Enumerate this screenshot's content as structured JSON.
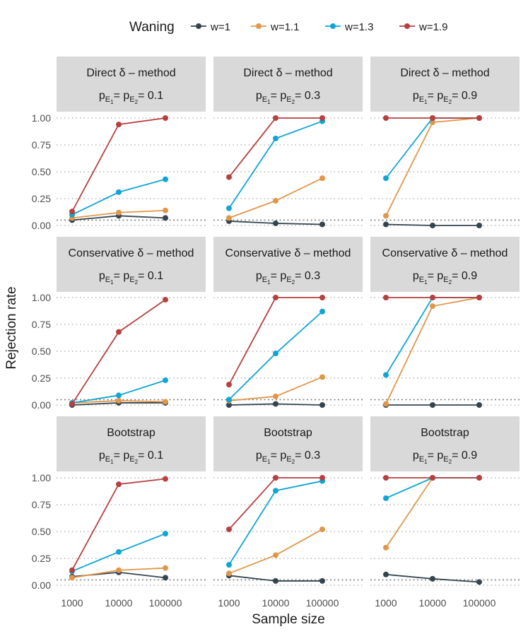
{
  "legend": {
    "title": "Waning",
    "items": [
      "w=1",
      "w=1.1",
      "w=1.3",
      "w=1.9"
    ]
  },
  "colors": {
    "w=1": "#35454f",
    "w=1.1": "#e0974a",
    "w=1.3": "#0fa5d5",
    "w=1.9": "#b6403f",
    "strip": "#d9d9d9",
    "grid": "#ebebeb",
    "reference": "#7f7f7f"
  },
  "chart_data": {
    "type": "line",
    "xlabel": "Sample size",
    "ylabel": "Rejection rate",
    "x": [
      "1000",
      "10000",
      "100000"
    ],
    "y_ticks": [
      "0.00",
      "0.25",
      "0.50",
      "0.75",
      "1.00"
    ],
    "ylim": [
      0,
      1
    ],
    "reference_line": 0.05,
    "grid": true,
    "legend_position": "top",
    "facet_rows": [
      "Direct  δ – method",
      "Conservative  δ – method",
      "Bootstrap"
    ],
    "facet_cols": [
      "0.1",
      "0.3",
      "0.9"
    ],
    "strip_prefix": "p",
    "strip_sub_e1": "E",
    "strip_sub_e1_index": "1",
    "strip_sub_e2": "E",
    "strip_sub_e2_index": "2",
    "strip_eq": "=",
    "panels": [
      {
        "method": "Direct  δ – method",
        "p": "0.1",
        "series": [
          {
            "name": "w=1",
            "values": [
              0.05,
              0.09,
              0.07
            ]
          },
          {
            "name": "w=1.1",
            "values": [
              0.07,
              0.12,
              0.14
            ]
          },
          {
            "name": "w=1.3",
            "values": [
              0.1,
              0.31,
              0.43
            ]
          },
          {
            "name": "w=1.9",
            "values": [
              0.13,
              0.94,
              1.0
            ]
          }
        ]
      },
      {
        "method": "Direct  δ – method",
        "p": "0.3",
        "series": [
          {
            "name": "w=1",
            "values": [
              0.04,
              0.02,
              0.01
            ]
          },
          {
            "name": "w=1.1",
            "values": [
              0.07,
              0.23,
              0.44
            ]
          },
          {
            "name": "w=1.3",
            "values": [
              0.16,
              0.81,
              0.97
            ]
          },
          {
            "name": "w=1.9",
            "values": [
              0.45,
              1.0,
              1.0
            ]
          }
        ]
      },
      {
        "method": "Direct  δ – method",
        "p": "0.9",
        "series": [
          {
            "name": "w=1",
            "values": [
              0.01,
              0.0,
              0.0
            ]
          },
          {
            "name": "w=1.1",
            "values": [
              0.09,
              0.96,
              1.0
            ]
          },
          {
            "name": "w=1.3",
            "values": [
              0.44,
              1.0,
              1.0
            ]
          },
          {
            "name": "w=1.9",
            "values": [
              1.0,
              1.0,
              1.0
            ]
          }
        ]
      },
      {
        "method": "Conservative  δ – method",
        "p": "0.1",
        "series": [
          {
            "name": "w=1",
            "values": [
              0.0,
              0.02,
              0.02
            ]
          },
          {
            "name": "w=1.1",
            "values": [
              0.02,
              0.04,
              0.03
            ]
          },
          {
            "name": "w=1.3",
            "values": [
              0.02,
              0.09,
              0.23
            ]
          },
          {
            "name": "w=1.9",
            "values": [
              0.01,
              0.68,
              0.98
            ]
          }
        ]
      },
      {
        "method": "Conservative  δ – method",
        "p": "0.3",
        "series": [
          {
            "name": "w=1",
            "values": [
              0.0,
              0.01,
              0.0
            ]
          },
          {
            "name": "w=1.1",
            "values": [
              0.04,
              0.08,
              0.26
            ]
          },
          {
            "name": "w=1.3",
            "values": [
              0.05,
              0.48,
              0.87
            ]
          },
          {
            "name": "w=1.9",
            "values": [
              0.19,
              1.0,
              1.0
            ]
          }
        ]
      },
      {
        "method": "Conservative  δ – method",
        "p": "0.9",
        "series": [
          {
            "name": "w=1",
            "values": [
              0.0,
              0.0,
              0.0
            ]
          },
          {
            "name": "w=1.1",
            "values": [
              0.01,
              0.92,
              1.0
            ]
          },
          {
            "name": "w=1.3",
            "values": [
              0.28,
              1.0,
              1.0
            ]
          },
          {
            "name": "w=1.9",
            "values": [
              1.0,
              1.0,
              1.0
            ]
          }
        ]
      },
      {
        "method": "Bootstrap",
        "p": "0.1",
        "series": [
          {
            "name": "w=1",
            "values": [
              0.08,
              0.12,
              0.07
            ]
          },
          {
            "name": "w=1.1",
            "values": [
              0.07,
              0.14,
              0.16
            ]
          },
          {
            "name": "w=1.3",
            "values": [
              0.13,
              0.31,
              0.48
            ]
          },
          {
            "name": "w=1.9",
            "values": [
              0.14,
              0.94,
              0.99
            ]
          }
        ]
      },
      {
        "method": "Bootstrap",
        "p": "0.3",
        "series": [
          {
            "name": "w=1",
            "values": [
              0.09,
              0.04,
              0.04
            ]
          },
          {
            "name": "w=1.1",
            "values": [
              0.11,
              0.28,
              0.52
            ]
          },
          {
            "name": "w=1.3",
            "values": [
              0.19,
              0.88,
              0.97
            ]
          },
          {
            "name": "w=1.9",
            "values": [
              0.52,
              1.0,
              1.0
            ]
          }
        ]
      },
      {
        "method": "Bootstrap",
        "p": "0.9",
        "series": [
          {
            "name": "w=1",
            "values": [
              0.1,
              0.06,
              0.03
            ]
          },
          {
            "name": "w=1.1",
            "values": [
              0.35,
              1.0,
              1.0
            ]
          },
          {
            "name": "w=1.3",
            "values": [
              0.81,
              1.0,
              1.0
            ]
          },
          {
            "name": "w=1.9",
            "values": [
              1.0,
              1.0,
              1.0
            ]
          }
        ]
      }
    ]
  }
}
